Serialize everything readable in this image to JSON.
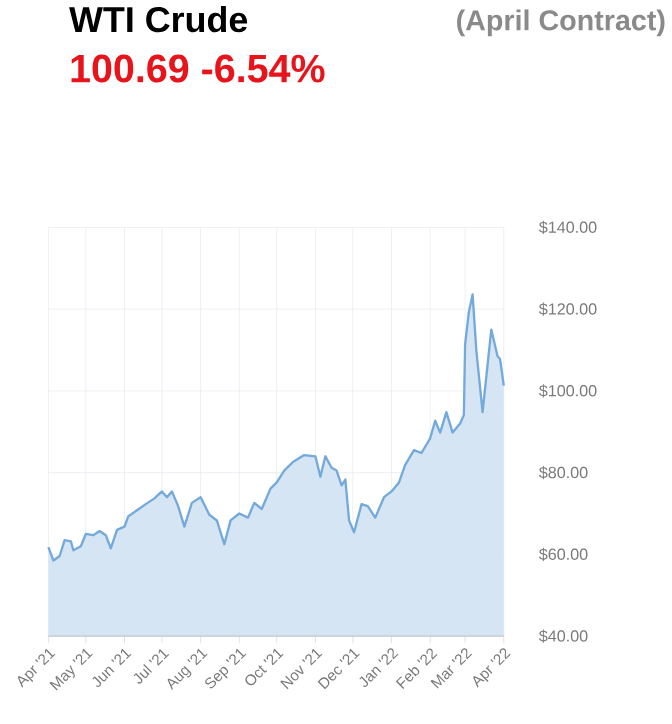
{
  "chart_data": {
    "type": "area",
    "title": "WTI Crude",
    "subtitle": "(April Contract)",
    "annotations": [
      "100.69 -6.54%"
    ],
    "x": [
      "2021-04-01",
      "2021-04-05",
      "2021-04-10",
      "2021-04-14",
      "2021-04-19",
      "2021-04-21",
      "2021-04-27",
      "2021-05-01",
      "2021-05-07",
      "2021-05-12",
      "2021-05-17",
      "2021-05-21",
      "2021-05-26",
      "2021-06-01",
      "2021-06-04",
      "2021-06-11",
      "2021-06-18",
      "2021-06-25",
      "2021-07-01",
      "2021-07-05",
      "2021-07-09",
      "2021-07-14",
      "2021-07-19",
      "2021-07-25",
      "2021-08-01",
      "2021-08-08",
      "2021-08-14",
      "2021-08-20",
      "2021-08-25",
      "2021-09-01",
      "2021-09-08",
      "2021-09-13",
      "2021-09-19",
      "2021-09-26",
      "2021-10-01",
      "2021-10-07",
      "2021-10-14",
      "2021-10-23",
      "2021-11-01",
      "2021-11-05",
      "2021-11-09",
      "2021-11-14",
      "2021-11-18",
      "2021-11-22",
      "2021-11-25",
      "2021-11-28",
      "2021-12-02",
      "2021-12-08",
      "2021-12-13",
      "2021-12-19",
      "2021-12-26",
      "2022-01-01",
      "2022-01-07",
      "2022-01-12",
      "2022-01-19",
      "2022-01-25",
      "2022-02-01",
      "2022-02-05",
      "2022-02-09",
      "2022-02-14",
      "2022-02-19",
      "2022-02-25",
      "2022-02-28",
      "2022-03-01",
      "2022-03-04",
      "2022-03-07",
      "2022-03-10",
      "2022-03-15",
      "2022-03-22",
      "2022-03-27",
      "2022-03-29",
      "2022-04-01"
    ],
    "series": [
      {
        "color": "#74a9dc",
        "values": [
          61.8,
          58.5,
          59.6,
          63.5,
          63.2,
          61,
          62,
          65,
          64.7,
          65.7,
          64.7,
          61.5,
          66,
          66.8,
          69.3,
          70.8,
          72.3,
          73.7,
          75.4,
          74,
          75.4,
          71.8,
          66.8,
          72.6,
          74,
          69.7,
          68.3,
          62.5,
          68.3,
          70,
          69,
          72.6,
          71.1,
          76.1,
          77.6,
          80.5,
          82.6,
          84.3,
          84,
          79,
          84,
          81.2,
          80.5,
          76.9,
          78.3,
          68.3,
          65.4,
          72.3,
          71.8,
          69,
          74,
          75.4,
          77.6,
          81.9,
          85.5,
          84.8,
          88.4,
          92.7,
          89.8,
          94.8,
          89.8,
          92,
          94.1,
          111.4,
          119.3,
          123.6,
          109.9,
          94.8,
          115,
          108.5,
          107.8,
          101.3
        ]
      }
    ],
    "xlim": [
      "2021-04-01",
      "2022-04-01"
    ],
    "xticks": [
      {
        "value": "2021-04-01",
        "label": "Apr '21"
      },
      {
        "value": "2021-05-01",
        "label": "May '21"
      },
      {
        "value": "2021-06-01",
        "label": "Jun '21"
      },
      {
        "value": "2021-07-01",
        "label": "Jul '21"
      },
      {
        "value": "2021-08-01",
        "label": "Aug '21"
      },
      {
        "value": "2021-09-01",
        "label": "Sep '21"
      },
      {
        "value": "2021-10-01",
        "label": "Oct '21"
      },
      {
        "value": "2021-11-01",
        "label": "Nov '21"
      },
      {
        "value": "2021-12-01",
        "label": "Dec '21"
      },
      {
        "value": "2022-01-01",
        "label": "Jan '22"
      },
      {
        "value": "2022-02-01",
        "label": "Feb '22"
      },
      {
        "value": "2022-03-01",
        "label": "Mar '22"
      },
      {
        "value": "2022-04-01",
        "label": "Apr '22"
      }
    ],
    "ylim": [
      40,
      140
    ],
    "yticks": [
      {
        "value": 40,
        "label": "$40.00"
      },
      {
        "value": 60,
        "label": "$60.00"
      },
      {
        "value": 80,
        "label": "$80.00"
      },
      {
        "value": 100,
        "label": "$100.00"
      },
      {
        "value": 120,
        "label": "$120.00"
      },
      {
        "value": 140,
        "label": "$140.00"
      }
    ],
    "grid": true
  }
}
